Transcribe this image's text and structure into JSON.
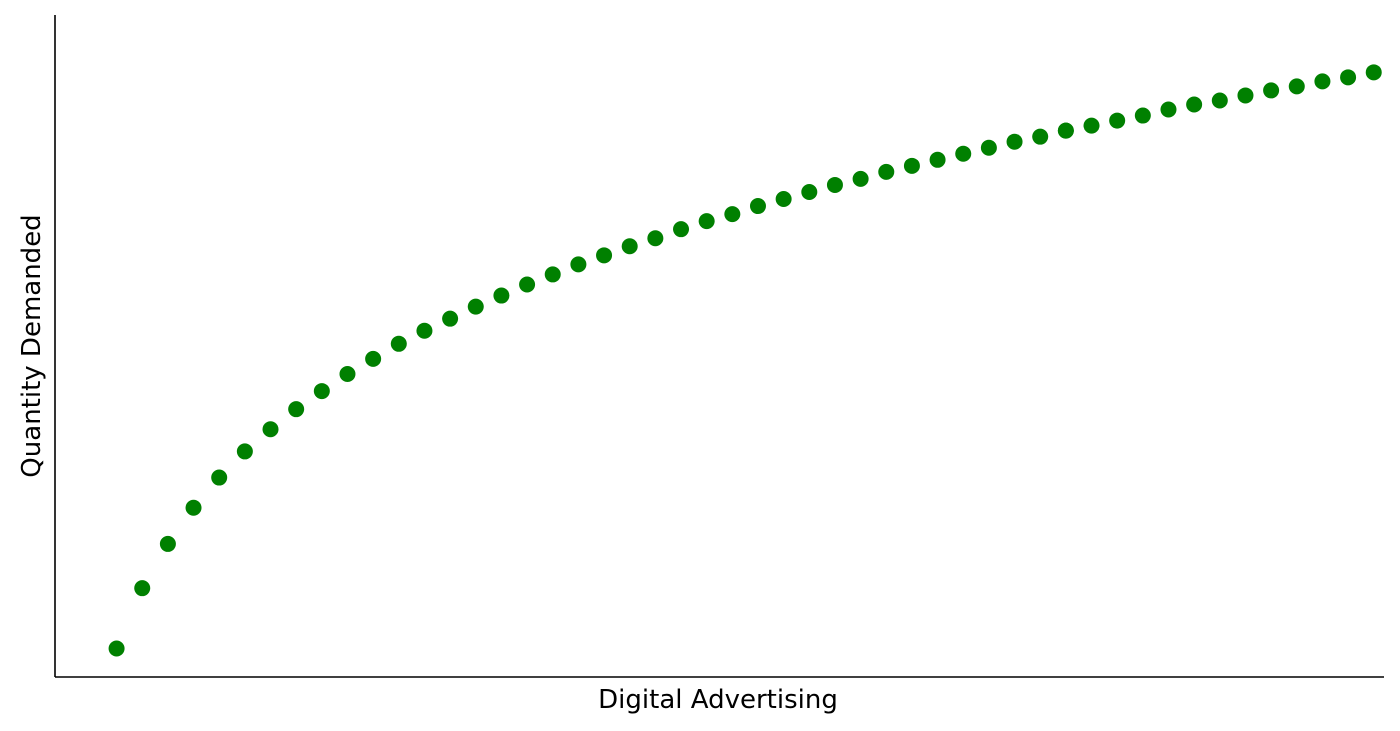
{
  "chart_data": {
    "type": "scatter",
    "title": "",
    "xlabel": "Digital Advertising",
    "ylabel": "Quantity Demanded",
    "x_ticks_visible": false,
    "y_ticks_visible": false,
    "grid": false,
    "legend": "none",
    "xlim": [
      -2.4,
      49.4
    ],
    "ylim": [
      -1.134,
      25.2
    ],
    "series": [
      {
        "color": "#008000",
        "marker": "circle",
        "x": [
          0,
          1,
          2,
          3,
          4,
          5,
          6,
          7,
          8,
          9,
          10,
          11,
          12,
          13,
          14,
          15,
          16,
          17,
          18,
          19,
          20,
          21,
          22,
          23,
          24,
          25,
          26,
          27,
          28,
          29,
          30,
          31,
          32,
          33,
          34,
          35,
          36,
          37,
          37,
          38,
          39,
          40,
          41,
          42,
          43,
          44,
          45,
          46,
          47,
          48,
          49
        ],
        "y": [
          0.0,
          2.4,
          4.16,
          5.6,
          6.8,
          7.84,
          8.72,
          9.52,
          10.24,
          10.92,
          11.52,
          12.12,
          12.64,
          13.12,
          13.6,
          14.04,
          14.48,
          14.88,
          15.28,
          15.64,
          16.0,
          16.32,
          16.68,
          17.0,
          17.28,
          17.6,
          17.88,
          18.16,
          18.44,
          18.68,
          18.96,
          19.2,
          19.44,
          19.68,
          19.92,
          20.16,
          20.36,
          20.6,
          20.6,
          20.8,
          21.0,
          21.2,
          21.44,
          21.64,
          21.8,
          22.0,
          22.2,
          22.36,
          22.56,
          22.72,
          22.92
        ]
      }
    ]
  }
}
